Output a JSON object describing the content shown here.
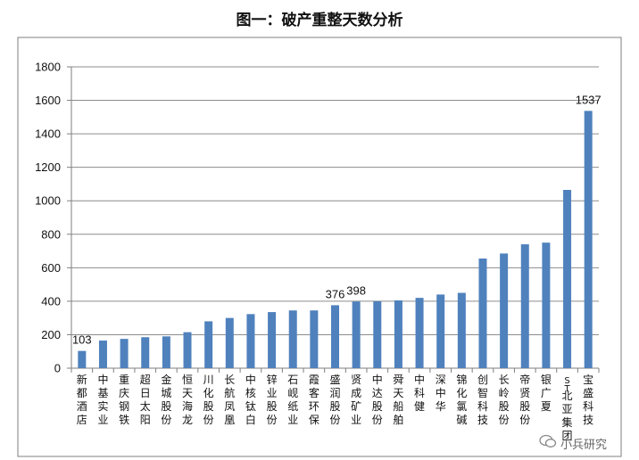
{
  "chart_data": {
    "type": "bar",
    "title": "图一：破产重整天数分析",
    "categories": [
      "新都酒店",
      "中基实业",
      "重庆钢铁",
      "超日太阳",
      "金城股份",
      "恒天海龙",
      "川化股份",
      "长航凤凰",
      "中核钛白",
      "锌业股份",
      "石岘纸业",
      "霞客环保",
      "盛润股份",
      "贤成矿业",
      "中达股份",
      "舜天船舶",
      "中科健",
      "深中华",
      "锦化氯碱",
      "创智科技",
      "长岭股份",
      "帝贤股份",
      "银广夏",
      "ST北亚集团",
      "宝盛科技"
    ],
    "values": [
      103,
      165,
      175,
      185,
      190,
      215,
      280,
      300,
      323,
      335,
      345,
      345,
      376,
      398,
      400,
      405,
      420,
      440,
      450,
      655,
      685,
      740,
      750,
      1065,
      1537
    ],
    "data_labels": {
      "0": "103",
      "12": "376",
      "13": "398",
      "24": "1537"
    },
    "ylim": [
      0,
      1800
    ],
    "yticks": [
      "0",
      "200",
      "400",
      "600",
      "800",
      "1000",
      "1200",
      "1400",
      "1600",
      "1800"
    ],
    "bar_color": "#4f81bd",
    "grid": true,
    "xlabel": "",
    "ylabel": ""
  },
  "watermark": "小兵研究"
}
